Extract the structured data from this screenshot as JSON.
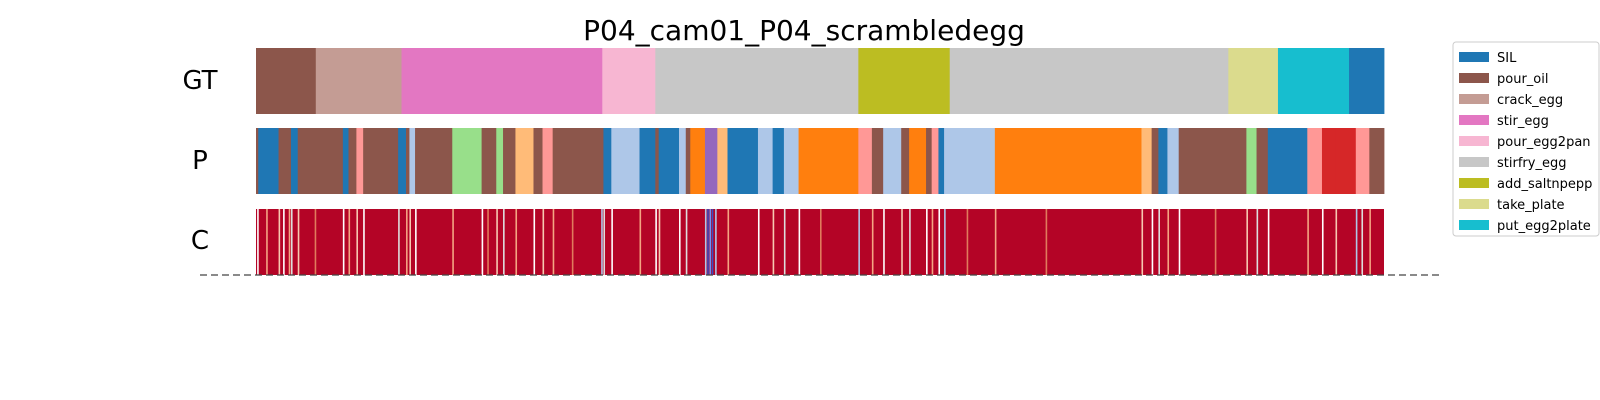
{
  "chart_data": {
    "type": "segmentation-timeline",
    "title": "P04_cam01_P04_scrambledegg",
    "total_frames": 1000,
    "rows": [
      {
        "label": "GT",
        "kind": "segments"
      },
      {
        "label": "P",
        "kind": "segments"
      },
      {
        "label": "C",
        "kind": "confidence"
      }
    ],
    "legend": {
      "placement": "right-top",
      "entries": [
        {
          "name": "SIL",
          "color": "#1f77b4"
        },
        {
          "name": "pour_oil",
          "color": "#8c564b"
        },
        {
          "name": "crack_egg",
          "color": "#c49c94"
        },
        {
          "name": "stir_egg",
          "color": "#e377c2"
        },
        {
          "name": "pour_egg2pan",
          "color": "#f7b6d2"
        },
        {
          "name": "stirfry_egg",
          "color": "#c7c7c7"
        },
        {
          "name": "add_saltnpepp",
          "color": "#bcbd22"
        },
        {
          "name": "take_plate",
          "color": "#dbdb8d"
        },
        {
          "name": "put_egg2plate",
          "color": "#17becf"
        }
      ]
    },
    "gt_segments": [
      {
        "start": 0,
        "end": 53,
        "color": "#8c564b"
      },
      {
        "start": 53,
        "end": 129,
        "color": "#c49c94"
      },
      {
        "start": 129,
        "end": 307,
        "color": "#e377c2"
      },
      {
        "start": 307,
        "end": 354,
        "color": "#f7b6d2"
      },
      {
        "start": 354,
        "end": 534,
        "color": "#c7c7c7"
      },
      {
        "start": 534,
        "end": 615,
        "color": "#bcbd22"
      },
      {
        "start": 615,
        "end": 862,
        "color": "#c7c7c7"
      },
      {
        "start": 862,
        "end": 906,
        "color": "#dbdb8d"
      },
      {
        "start": 906,
        "end": 969,
        "color": "#17becf"
      },
      {
        "start": 969,
        "end": 1000,
        "color": "#1f77b4"
      }
    ],
    "pred_segments": [
      {
        "start": 0,
        "end": 2,
        "color": "#8c564b"
      },
      {
        "start": 2,
        "end": 20,
        "color": "#1f77b4"
      },
      {
        "start": 20,
        "end": 31,
        "color": "#8c564b"
      },
      {
        "start": 31,
        "end": 37,
        "color": "#1f77b4"
      },
      {
        "start": 37,
        "end": 77,
        "color": "#8c564b"
      },
      {
        "start": 77,
        "end": 82,
        "color": "#1f77b4"
      },
      {
        "start": 82,
        "end": 89,
        "color": "#8c564b"
      },
      {
        "start": 89,
        "end": 95,
        "color": "#ff9896"
      },
      {
        "start": 95,
        "end": 126,
        "color": "#8c564b"
      },
      {
        "start": 126,
        "end": 133,
        "color": "#1f77b4"
      },
      {
        "start": 133,
        "end": 136,
        "color": "#8c564b"
      },
      {
        "start": 136,
        "end": 141,
        "color": "#aec7e8"
      },
      {
        "start": 141,
        "end": 174,
        "color": "#8c564b"
      },
      {
        "start": 174,
        "end": 200,
        "color": "#98df8a"
      },
      {
        "start": 200,
        "end": 213,
        "color": "#8c564b"
      },
      {
        "start": 213,
        "end": 219,
        "color": "#98df8a"
      },
      {
        "start": 219,
        "end": 230,
        "color": "#8c564b"
      },
      {
        "start": 230,
        "end": 246,
        "color": "#ffbb78"
      },
      {
        "start": 246,
        "end": 254,
        "color": "#8c564b"
      },
      {
        "start": 254,
        "end": 263,
        "color": "#ff9896"
      },
      {
        "start": 263,
        "end": 308,
        "color": "#8c564b"
      },
      {
        "start": 308,
        "end": 315,
        "color": "#1f77b4"
      },
      {
        "start": 315,
        "end": 340,
        "color": "#aec7e8"
      },
      {
        "start": 340,
        "end": 354,
        "color": "#1f77b4"
      },
      {
        "start": 354,
        "end": 357,
        "color": "#8c564b"
      },
      {
        "start": 357,
        "end": 375,
        "color": "#1f77b4"
      },
      {
        "start": 375,
        "end": 381,
        "color": "#aec7e8"
      },
      {
        "start": 381,
        "end": 385,
        "color": "#8c564b"
      },
      {
        "start": 385,
        "end": 398,
        "color": "#ff7f0e"
      },
      {
        "start": 398,
        "end": 409,
        "color": "#9467bd"
      },
      {
        "start": 409,
        "end": 418,
        "color": "#ffbb78"
      },
      {
        "start": 418,
        "end": 445,
        "color": "#1f77b4"
      },
      {
        "start": 445,
        "end": 458,
        "color": "#aec7e8"
      },
      {
        "start": 458,
        "end": 468,
        "color": "#1f77b4"
      },
      {
        "start": 468,
        "end": 481,
        "color": "#aec7e8"
      },
      {
        "start": 481,
        "end": 534,
        "color": "#ff7f0e"
      },
      {
        "start": 534,
        "end": 546,
        "color": "#ff9896"
      },
      {
        "start": 546,
        "end": 556,
        "color": "#8c564b"
      },
      {
        "start": 556,
        "end": 572,
        "color": "#aec7e8"
      },
      {
        "start": 572,
        "end": 579,
        "color": "#8c564b"
      },
      {
        "start": 579,
        "end": 594,
        "color": "#ff7f0e"
      },
      {
        "start": 594,
        "end": 599,
        "color": "#8c564b"
      },
      {
        "start": 599,
        "end": 605,
        "color": "#ff9896"
      },
      {
        "start": 605,
        "end": 610,
        "color": "#1f77b4"
      },
      {
        "start": 610,
        "end": 655,
        "color": "#aec7e8"
      },
      {
        "start": 655,
        "end": 785,
        "color": "#ff7f0e"
      },
      {
        "start": 785,
        "end": 794,
        "color": "#ffbb78"
      },
      {
        "start": 794,
        "end": 800,
        "color": "#8c564b"
      },
      {
        "start": 800,
        "end": 808,
        "color": "#1f77b4"
      },
      {
        "start": 808,
        "end": 818,
        "color": "#aec7e8"
      },
      {
        "start": 818,
        "end": 878,
        "color": "#8c564b"
      },
      {
        "start": 878,
        "end": 887,
        "color": "#98df8a"
      },
      {
        "start": 887,
        "end": 897,
        "color": "#8c564b"
      },
      {
        "start": 897,
        "end": 932,
        "color": "#1f77b4"
      },
      {
        "start": 932,
        "end": 945,
        "color": "#ff9896"
      },
      {
        "start": 945,
        "end": 957,
        "color": "#d62728"
      },
      {
        "start": 957,
        "end": 975,
        "color": "#d62728"
      },
      {
        "start": 975,
        "end": 987,
        "color": "#ff9896"
      },
      {
        "start": 987,
        "end": 1000,
        "color": "#8c564b"
      }
    ],
    "confidence_base_color": "#b40426",
    "confidence_lines": [
      {
        "at": 1,
        "color": "#ffffff"
      },
      {
        "at": 9,
        "color": "#f4a582"
      },
      {
        "at": 20,
        "color": "#f7c8b0"
      },
      {
        "at": 24,
        "color": "#ffffff"
      },
      {
        "at": 29,
        "color": "#f4a582"
      },
      {
        "at": 31,
        "color": "#dddddd"
      },
      {
        "at": 37,
        "color": "#f7c8b0"
      },
      {
        "at": 52,
        "color": "#e07b5c"
      },
      {
        "at": 77,
        "color": "#ffffff"
      },
      {
        "at": 82,
        "color": "#f4a582"
      },
      {
        "at": 89,
        "color": "#f7c8b0"
      },
      {
        "at": 95,
        "color": "#ffffff"
      },
      {
        "at": 126,
        "color": "#dddddd"
      },
      {
        "at": 133,
        "color": "#f4a582"
      },
      {
        "at": 136,
        "color": "#f7c8b0"
      },
      {
        "at": 141,
        "color": "#ffffff"
      },
      {
        "at": 174,
        "color": "#f4a582"
      },
      {
        "at": 200,
        "color": "#ffffff"
      },
      {
        "at": 205,
        "color": "#e07b5c"
      },
      {
        "at": 213,
        "color": "#f7c8b0"
      },
      {
        "at": 219,
        "color": "#dddddd"
      },
      {
        "at": 230,
        "color": "#f4a582"
      },
      {
        "at": 246,
        "color": "#ffffff"
      },
      {
        "at": 254,
        "color": "#f7c8b0"
      },
      {
        "at": 263,
        "color": "#f4a582"
      },
      {
        "at": 280,
        "color": "#e07b5c"
      },
      {
        "at": 306,
        "color": "#aec7e8"
      },
      {
        "at": 308,
        "color": "#dddddd"
      },
      {
        "at": 315,
        "color": "#ffffff"
      },
      {
        "at": 340,
        "color": "#f4a582"
      },
      {
        "at": 354,
        "color": "#ffffff"
      },
      {
        "at": 357,
        "color": "#f7c8b0"
      },
      {
        "at": 375,
        "color": "#ffffff"
      },
      {
        "at": 381,
        "color": "#dddddd"
      },
      {
        "at": 398,
        "color": "#aec7e8"
      },
      {
        "at": 400,
        "color": "#3b4cc0"
      },
      {
        "at": 402,
        "color": "#6f92f3"
      },
      {
        "at": 404,
        "color": "#3b4cc0"
      },
      {
        "at": 407,
        "color": "#aec7e8"
      },
      {
        "at": 418,
        "color": "#f4a582"
      },
      {
        "at": 445,
        "color": "#ffffff"
      },
      {
        "at": 458,
        "color": "#f7c8b0"
      },
      {
        "at": 468,
        "color": "#dddddd"
      },
      {
        "at": 481,
        "color": "#ffffff"
      },
      {
        "at": 500,
        "color": "#e07b5c"
      },
      {
        "at": 534,
        "color": "#aec7e8"
      },
      {
        "at": 546,
        "color": "#f4a582"
      },
      {
        "at": 556,
        "color": "#ffffff"
      },
      {
        "at": 572,
        "color": "#f7c8b0"
      },
      {
        "at": 579,
        "color": "#dddddd"
      },
      {
        "at": 594,
        "color": "#ffffff"
      },
      {
        "at": 599,
        "color": "#f4a582"
      },
      {
        "at": 605,
        "color": "#ffffff"
      },
      {
        "at": 610,
        "color": "#aec7e8"
      },
      {
        "at": 630,
        "color": "#e07b5c"
      },
      {
        "at": 655,
        "color": "#f4a582"
      },
      {
        "at": 700,
        "color": "#e07b5c"
      },
      {
        "at": 785,
        "color": "#f7c8b0"
      },
      {
        "at": 794,
        "color": "#ffffff"
      },
      {
        "at": 800,
        "color": "#dddddd"
      },
      {
        "at": 808,
        "color": "#f4a582"
      },
      {
        "at": 818,
        "color": "#ffffff"
      },
      {
        "at": 850,
        "color": "#e07b5c"
      },
      {
        "at": 878,
        "color": "#f7c8b0"
      },
      {
        "at": 887,
        "color": "#dddddd"
      },
      {
        "at": 897,
        "color": "#ffffff"
      },
      {
        "at": 932,
        "color": "#f4a582"
      },
      {
        "at": 945,
        "color": "#ffffff"
      },
      {
        "at": 957,
        "color": "#f7c8b0"
      },
      {
        "at": 975,
        "color": "#aec7e8"
      },
      {
        "at": 980,
        "color": "#dddddd"
      },
      {
        "at": 987,
        "color": "#f4a582"
      }
    ]
  }
}
